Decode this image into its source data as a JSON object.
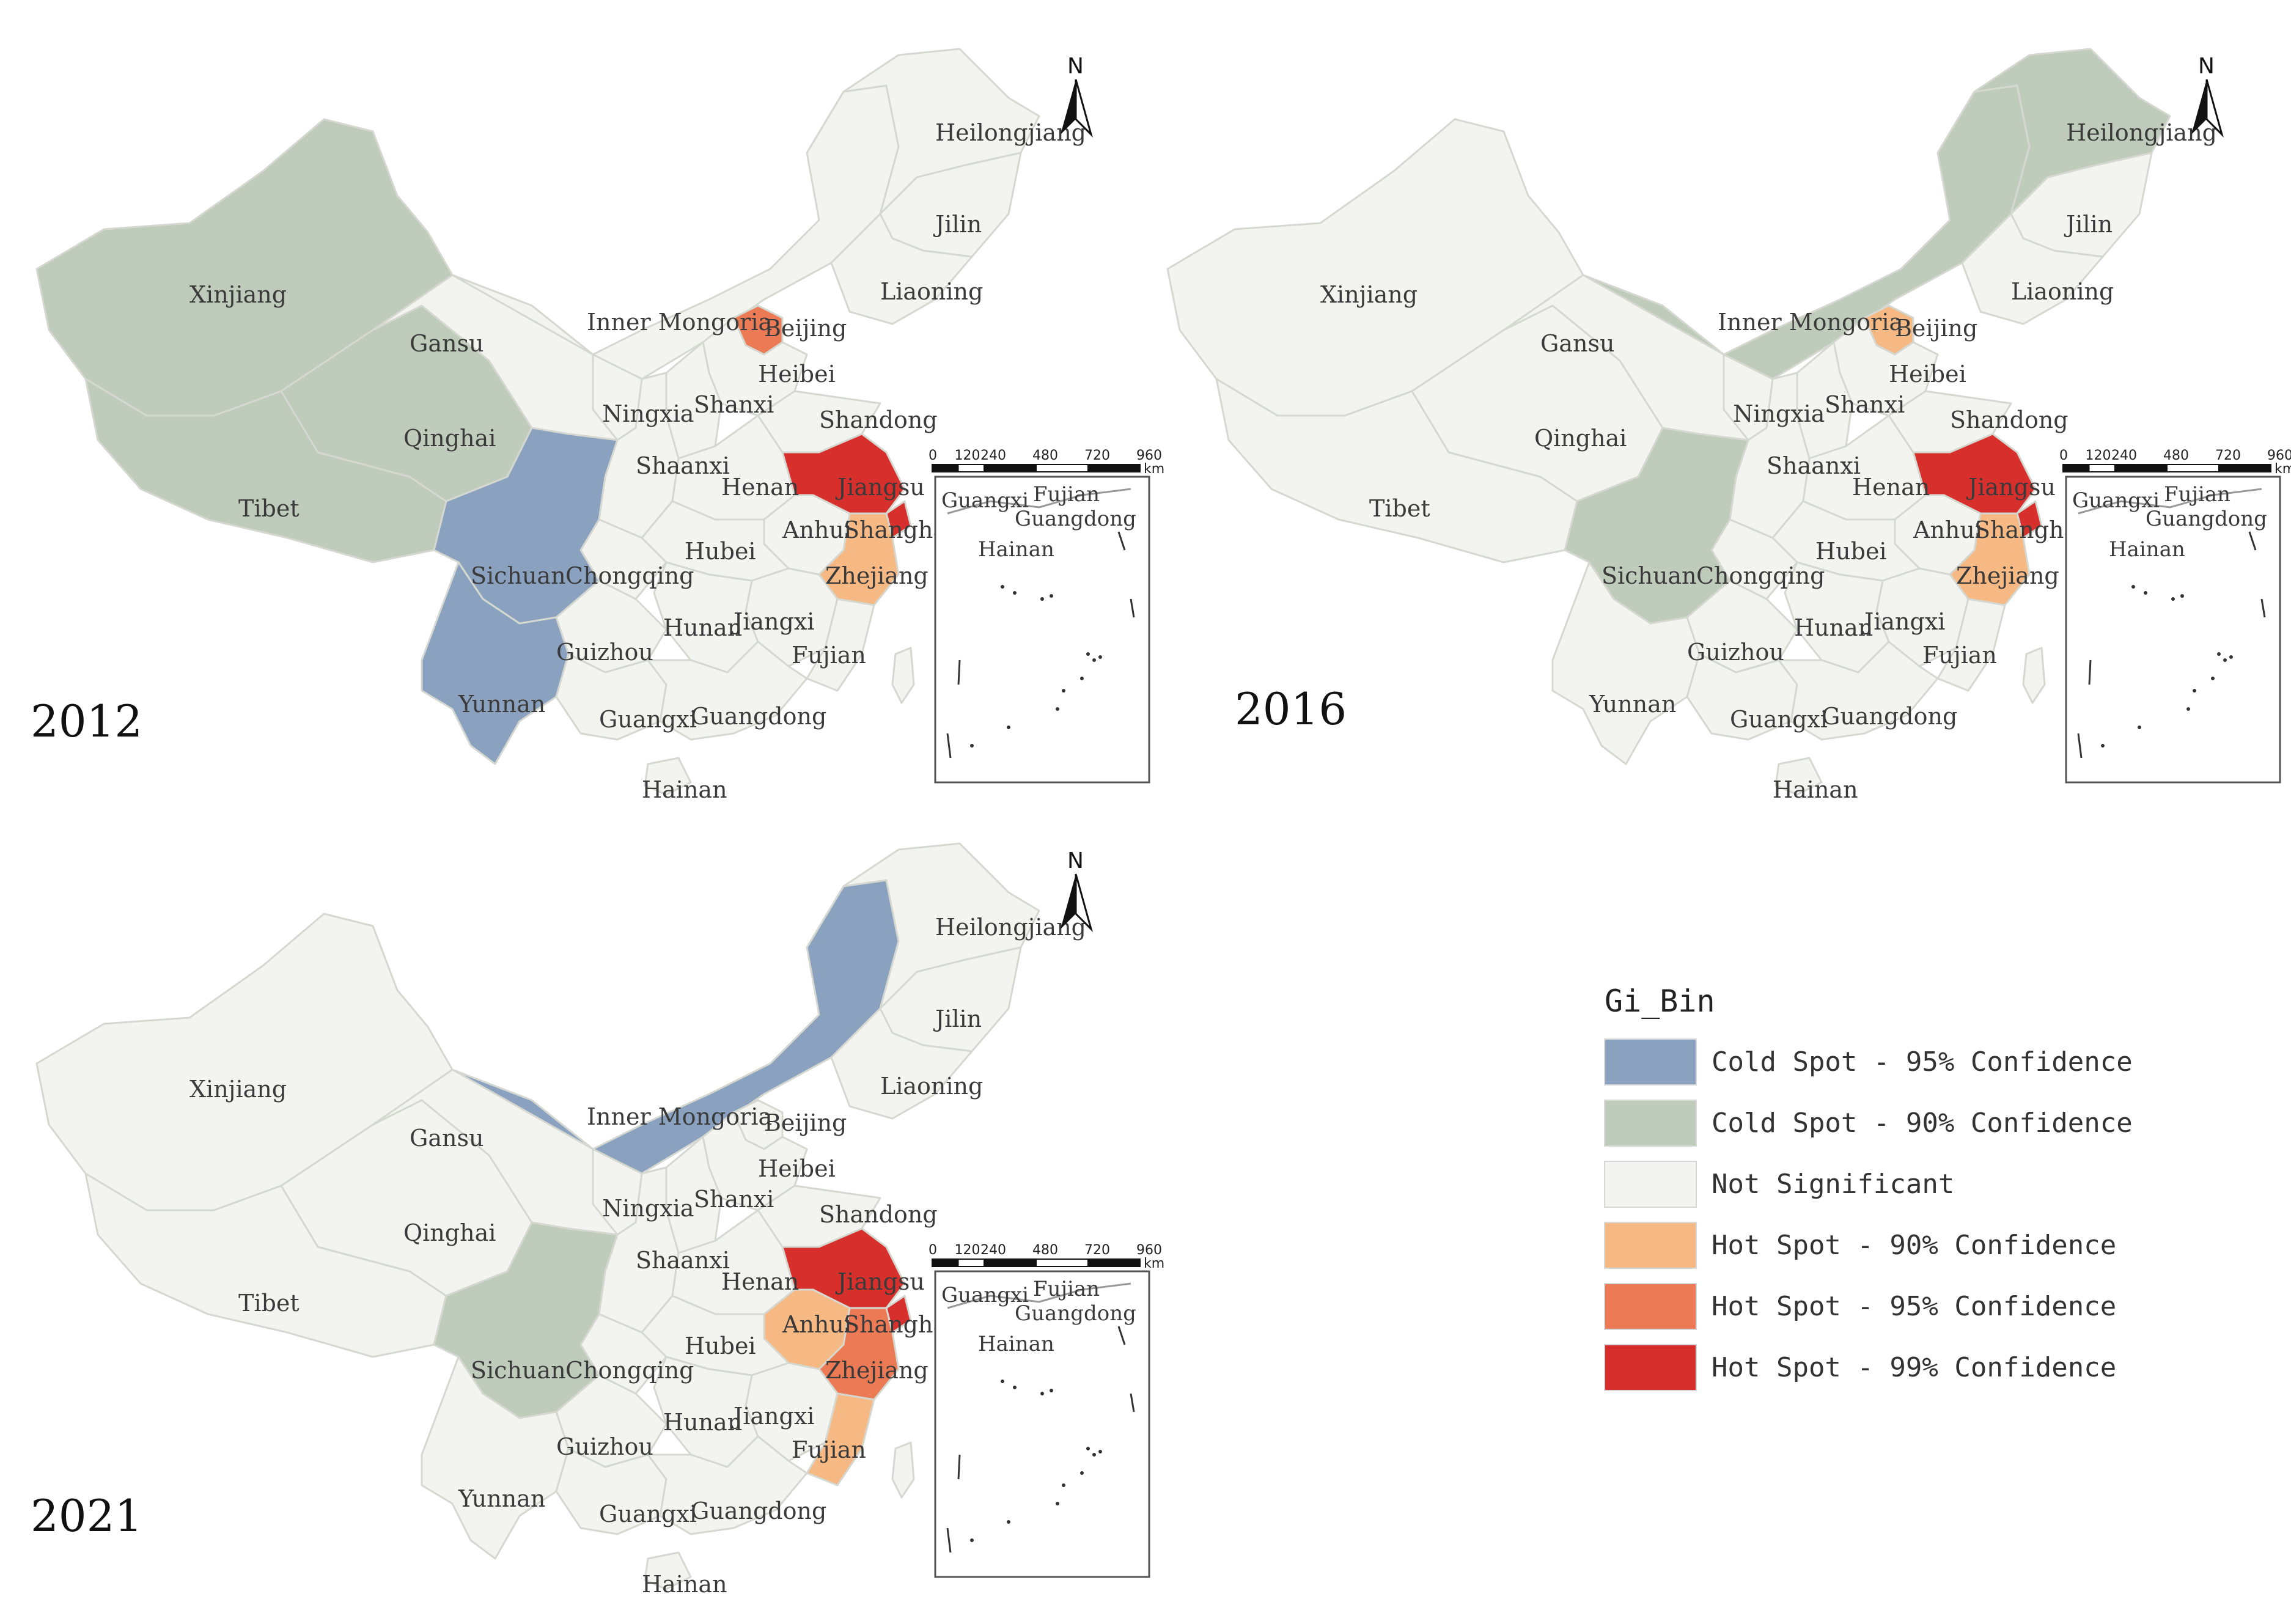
{
  "colors": {
    "cold95": "#8aa1bf",
    "cold90": "#bfcbbb",
    "notsig": "#f3f4ef",
    "hot90": "#f6b983",
    "hot95": "#ec7a55",
    "hot99": "#d7302c"
  },
  "legend": {
    "title": "Gi_Bin",
    "items": [
      {
        "key": "cold95",
        "label": "Cold Spot - 95% Confidence"
      },
      {
        "key": "cold90",
        "label": "Cold Spot - 90% Confidence"
      },
      {
        "key": "notsig",
        "label": "Not Significant"
      },
      {
        "key": "hot90",
        "label": "Hot Spot - 90% Confidence"
      },
      {
        "key": "hot95",
        "label": "Hot Spot - 95% Confidence"
      },
      {
        "key": "hot99",
        "label": "Hot Spot - 99% Confidence"
      }
    ]
  },
  "north_label": "N",
  "scale": {
    "ticks": [
      "0",
      "120",
      "240",
      "480",
      "720",
      "960"
    ],
    "unit": "km"
  },
  "inset_labels": [
    "Guangxi",
    "Guangdong",
    "Hainan",
    "Fujian"
  ],
  "maps": [
    {
      "year": "2012",
      "classes": {
        "Xinjiang": "cold90",
        "Qinghai": "cold90",
        "Tibet": "cold90",
        "Sichuan": "cold95",
        "Yunnan": "cold95",
        "Beijing": "hot95",
        "Jiangsu": "hot99",
        "Shanghai": "hot99",
        "Zhejiang": "hot90"
      }
    },
    {
      "year": "2016",
      "classes": {
        "Inner Mongoria": "cold90",
        "Heilongjiang": "cold90",
        "Sichuan": "cold90",
        "Beijing": "hot90",
        "Jiangsu": "hot99",
        "Shanghai": "hot99",
        "Zhejiang": "hot90"
      }
    },
    {
      "year": "2021",
      "classes": {
        "Inner Mongoria": "cold95",
        "Sichuan": "cold90",
        "Jiangsu": "hot99",
        "Shanghai": "hot99",
        "Zhejiang": "hot95",
        "Anhui": "hot90",
        "Fujian": "hot90"
      }
    }
  ],
  "province_labels": [
    "Heilongjiang",
    "Jilin",
    "Liaoning",
    "Xinjiang",
    "Gansu",
    "Inner Mongoria",
    "Beijing",
    "Heibei",
    "Ningxia",
    "Shanxi",
    "Shandong",
    "Qinghai",
    "Shaanxi",
    "Henan",
    "Jiangsu",
    "Tibet",
    "Anhui",
    "Shanghai",
    "Sichuan",
    "Chongqing",
    "Hubei",
    "Zhejiang",
    "Hunan",
    "Jiangxi",
    "Guizhou",
    "Fujian",
    "Yunnan",
    "Guangxi",
    "Guangdong",
    "Hainan"
  ]
}
